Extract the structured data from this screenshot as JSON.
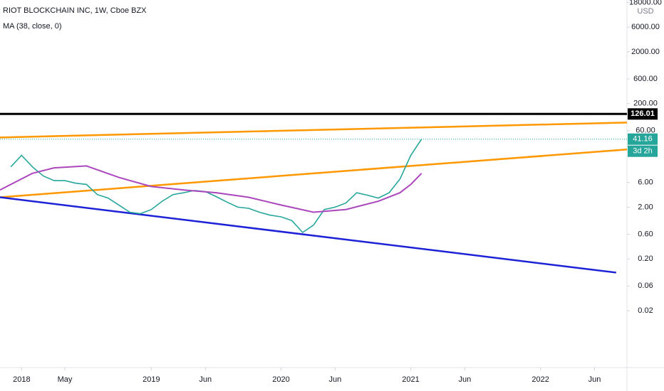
{
  "chart_data": {
    "type": "line",
    "currency": "USD",
    "log_scale": true,
    "series": [
      {
        "name": "RIOT BLOCKCHAIN INC, 1W, Cboe BZX",
        "color": "#26a69a",
        "x": [
          "2017-12",
          "2018-01",
          "2018-02",
          "2018-03",
          "2018-04",
          "2018-05",
          "2018-06",
          "2018-07",
          "2018-08",
          "2018-09",
          "2018-10",
          "2018-11",
          "2018-12",
          "2019-01",
          "2019-02",
          "2019-03",
          "2019-04",
          "2019-05",
          "2019-06",
          "2019-07",
          "2019-08",
          "2019-09",
          "2019-10",
          "2019-11",
          "2019-12",
          "2020-01",
          "2020-02",
          "2020-03",
          "2020-04",
          "2020-05",
          "2020-06",
          "2020-07",
          "2020-08",
          "2020-09",
          "2020-10",
          "2020-11",
          "2020-12",
          "2021-01",
          "2021-02"
        ],
        "values": [
          12,
          20,
          12,
          8,
          6.5,
          6.5,
          5.8,
          5.5,
          3.5,
          3,
          2.2,
          1.6,
          1.5,
          1.8,
          2.6,
          3.5,
          3.8,
          4.2,
          4,
          3.2,
          2.5,
          2,
          1.9,
          1.6,
          1.4,
          1.3,
          1.1,
          0.65,
          0.9,
          1.8,
          2,
          2.4,
          3.8,
          3.4,
          3,
          3.8,
          7,
          20,
          41.16
        ]
      },
      {
        "name": "MA (38, close, 0)",
        "color": "#ab47bc",
        "x": [
          "2017-11",
          "2018-02",
          "2018-04",
          "2018-07",
          "2018-10",
          "2019-01",
          "2019-04",
          "2019-07",
          "2019-10",
          "2020-01",
          "2020-04",
          "2020-07",
          "2020-10",
          "2020-12",
          "2021-01",
          "2021-02"
        ],
        "values": [
          4.3,
          9,
          11.5,
          12.5,
          7.5,
          5,
          4.3,
          3.8,
          3.1,
          2.2,
          1.6,
          1.8,
          2.6,
          3.8,
          5.5,
          9
        ]
      }
    ],
    "lines": [
      {
        "color": "#ff9800",
        "x": [
          "2017-11",
          "2022-09"
        ],
        "y": [
          44.4,
          86
        ]
      },
      {
        "color": "#ff9800",
        "x": [
          "2017-11",
          "2022-09"
        ],
        "y": [
          3.1,
          26
        ]
      },
      {
        "color": "#1e22d6",
        "x": [
          "2017-11",
          "2022-08"
        ],
        "y": [
          3.1,
          0.109
        ]
      }
    ],
    "horizontal_line": {
      "value": 126.01,
      "color": "#000000"
    },
    "countdown": "3d 2h",
    "xlim": [
      "2017-11",
      "2022-09"
    ],
    "ylim": [
      0.0016,
      20000
    ],
    "xticks": [
      {
        "value": "2018-01",
        "label": "2018"
      },
      {
        "value": "2018-05",
        "label": "May"
      },
      {
        "value": "2019-01",
        "label": "2019"
      },
      {
        "value": "2019-06",
        "label": "Jun"
      },
      {
        "value": "2020-01",
        "label": "2020"
      },
      {
        "value": "2020-06",
        "label": "Jun"
      },
      {
        "value": "2021-01",
        "label": "2021"
      },
      {
        "value": "2021-06",
        "label": "Jun"
      },
      {
        "value": "2022-01",
        "label": "2022"
      },
      {
        "value": "2022-06",
        "label": "Jun"
      }
    ],
    "yticks": [
      {
        "value": 18000,
        "label": "18000.00"
      },
      {
        "value": 6000,
        "label": "6000.00"
      },
      {
        "value": 2000,
        "label": "2000.00"
      },
      {
        "value": 600,
        "label": "600.00"
      },
      {
        "value": 200,
        "label": "200.00"
      },
      {
        "value": 60,
        "label": "60.00"
      },
      {
        "value": 6,
        "label": "6.00"
      },
      {
        "value": 2,
        "label": "2.00"
      },
      {
        "value": 0.6,
        "label": "0.60"
      },
      {
        "value": 0.2,
        "label": "0.20"
      },
      {
        "value": 0.06,
        "label": "0.06"
      },
      {
        "value": 0.02,
        "label": "0.02"
      }
    ]
  }
}
